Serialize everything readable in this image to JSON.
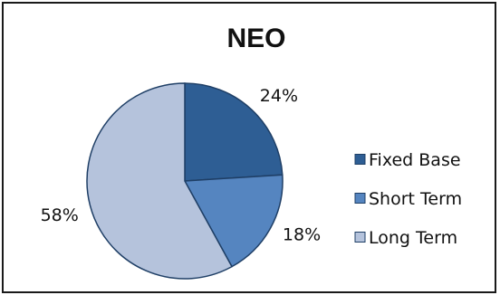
{
  "chart_data": {
    "type": "pie",
    "title": "NEO",
    "categories": [
      "Fixed Base",
      "Short Term",
      "Long Term"
    ],
    "values": [
      24,
      18,
      58
    ],
    "value_labels": [
      "24%",
      "18%",
      "58%"
    ],
    "colors": [
      "#2e5e94",
      "#5585c0",
      "#b5c3dc"
    ],
    "legend_position": "right"
  }
}
